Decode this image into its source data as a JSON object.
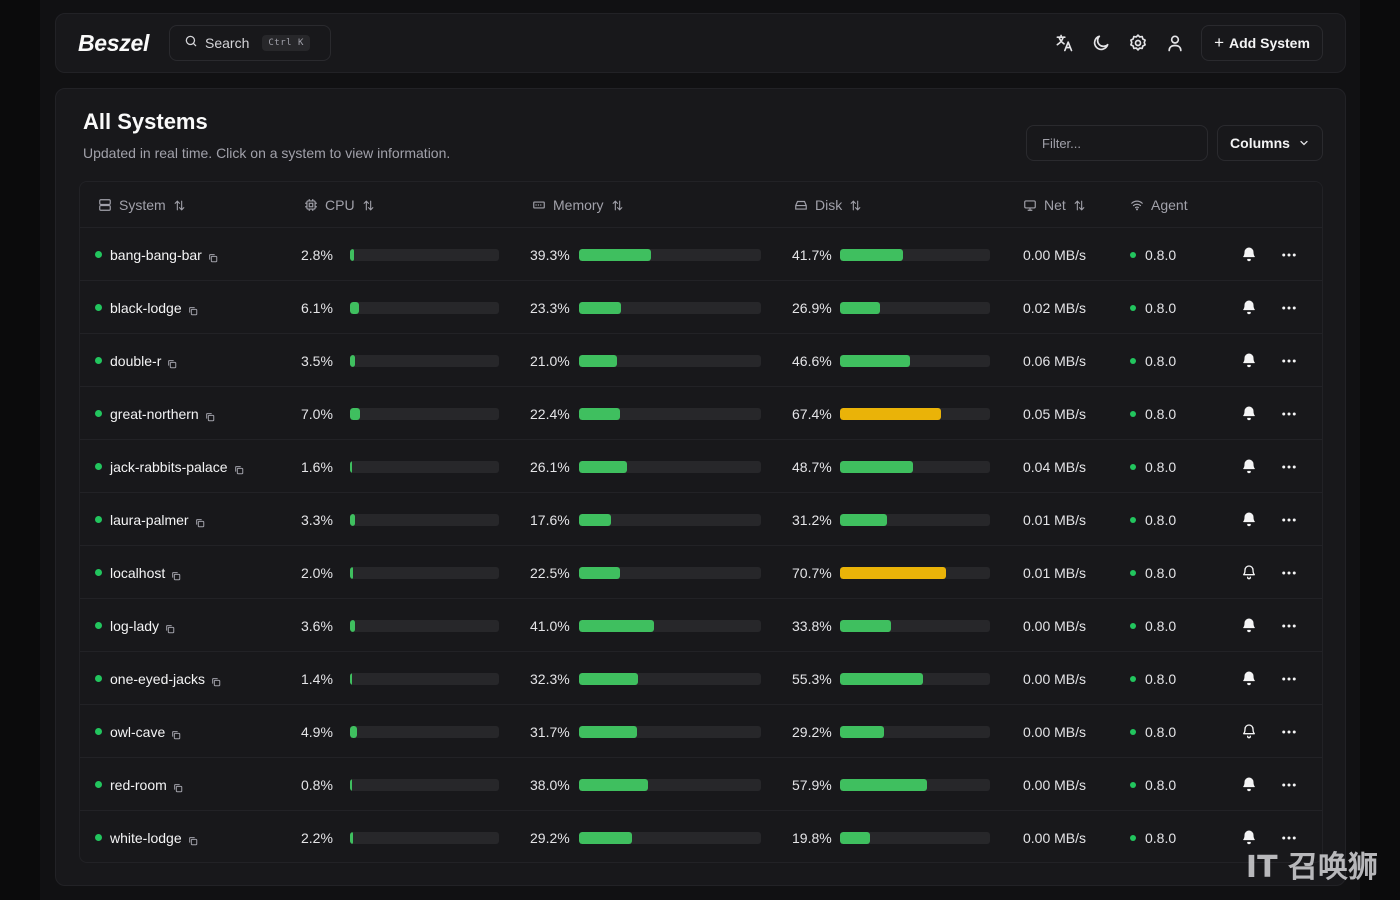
{
  "navbar": {
    "logo": "Beszel",
    "search_label": "Search",
    "search_kbd": "Ctrl K",
    "icons": [
      "translate-icon",
      "theme-moon-icon",
      "settings-gear-icon",
      "user-icon"
    ],
    "add_system_label": "Add System"
  },
  "main": {
    "title": "All Systems",
    "subtitle": "Updated in real time. Click on a system to view information.",
    "filter_placeholder": "Filter...",
    "columns_label": "Columns"
  },
  "table": {
    "headers": {
      "system": "System",
      "cpu": "CPU",
      "memory": "Memory",
      "disk": "Disk",
      "net": "Net",
      "agent": "Agent"
    },
    "rows": [
      {
        "name": "bang-bang-bar",
        "cpu": "2.8%",
        "cpu_v": 2.8,
        "mem": "39.3%",
        "mem_v": 39.3,
        "disk": "41.7%",
        "disk_v": 41.7,
        "net": "0.00 MB/s",
        "agent": "0.8.0",
        "bell": "filled"
      },
      {
        "name": "black-lodge",
        "cpu": "6.1%",
        "cpu_v": 6.1,
        "mem": "23.3%",
        "mem_v": 23.3,
        "disk": "26.9%",
        "disk_v": 26.9,
        "net": "0.02 MB/s",
        "agent": "0.8.0",
        "bell": "filled"
      },
      {
        "name": "double-r",
        "cpu": "3.5%",
        "cpu_v": 3.5,
        "mem": "21.0%",
        "mem_v": 21.0,
        "disk": "46.6%",
        "disk_v": 46.6,
        "net": "0.06 MB/s",
        "agent": "0.8.0",
        "bell": "filled"
      },
      {
        "name": "great-northern",
        "cpu": "7.0%",
        "cpu_v": 7.0,
        "mem": "22.4%",
        "mem_v": 22.4,
        "disk": "67.4%",
        "disk_v": 67.4,
        "net": "0.05 MB/s",
        "agent": "0.8.0",
        "bell": "filled"
      },
      {
        "name": "jack-rabbits-palace",
        "cpu": "1.6%",
        "cpu_v": 1.6,
        "mem": "26.1%",
        "mem_v": 26.1,
        "disk": "48.7%",
        "disk_v": 48.7,
        "net": "0.04 MB/s",
        "agent": "0.8.0",
        "bell": "filled"
      },
      {
        "name": "laura-palmer",
        "cpu": "3.3%",
        "cpu_v": 3.3,
        "mem": "17.6%",
        "mem_v": 17.6,
        "disk": "31.2%",
        "disk_v": 31.2,
        "net": "0.01 MB/s",
        "agent": "0.8.0",
        "bell": "filled"
      },
      {
        "name": "localhost",
        "cpu": "2.0%",
        "cpu_v": 2.0,
        "mem": "22.5%",
        "mem_v": 22.5,
        "disk": "70.7%",
        "disk_v": 70.7,
        "net": "0.01 MB/s",
        "agent": "0.8.0",
        "bell": "outline"
      },
      {
        "name": "log-lady",
        "cpu": "3.6%",
        "cpu_v": 3.6,
        "mem": "41.0%",
        "mem_v": 41.0,
        "disk": "33.8%",
        "disk_v": 33.8,
        "net": "0.00 MB/s",
        "agent": "0.8.0",
        "bell": "filled"
      },
      {
        "name": "one-eyed-jacks",
        "cpu": "1.4%",
        "cpu_v": 1.4,
        "mem": "32.3%",
        "mem_v": 32.3,
        "disk": "55.3%",
        "disk_v": 55.3,
        "net": "0.00 MB/s",
        "agent": "0.8.0",
        "bell": "filled"
      },
      {
        "name": "owl-cave",
        "cpu": "4.9%",
        "cpu_v": 4.9,
        "mem": "31.7%",
        "mem_v": 31.7,
        "disk": "29.2%",
        "disk_v": 29.2,
        "net": "0.00 MB/s",
        "agent": "0.8.0",
        "bell": "outline"
      },
      {
        "name": "red-room",
        "cpu": "0.8%",
        "cpu_v": 0.8,
        "mem": "38.0%",
        "mem_v": 38.0,
        "disk": "57.9%",
        "disk_v": 57.9,
        "net": "0.00 MB/s",
        "agent": "0.8.0",
        "bell": "filled"
      },
      {
        "name": "white-lodge",
        "cpu": "2.2%",
        "cpu_v": 2.2,
        "mem": "29.2%",
        "mem_v": 29.2,
        "disk": "19.8%",
        "disk_v": 19.8,
        "net": "0.00 MB/s",
        "agent": "0.8.0",
        "bell": "filled"
      }
    ]
  },
  "colors": {
    "ok": "#3fbf5f",
    "warn": "#eab308",
    "status_dot": "#22c55e",
    "track": "#27272a"
  },
  "watermark": "IT 召唤狮"
}
